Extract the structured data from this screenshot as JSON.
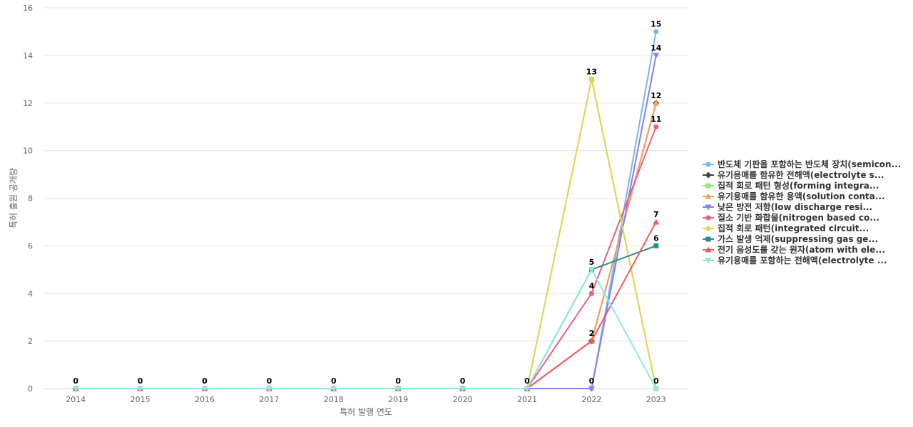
{
  "chart_data": {
    "type": "line",
    "title": "",
    "xlabel": "특허 발행 연도",
    "ylabel": "특허 출원 공개량",
    "x": [
      "2014",
      "2015",
      "2016",
      "2017",
      "2018",
      "2019",
      "2020",
      "2021",
      "2022",
      "2023"
    ],
    "ylim": [
      0,
      16
    ],
    "yticks": [
      0,
      2,
      4,
      6,
      8,
      10,
      12,
      14,
      16
    ],
    "grid": true,
    "legend_position": "right",
    "series": [
      {
        "name": "반도체 기판을 포함하는 반도체 장치(semicon...",
        "color": "#7cb5ec",
        "marker": "circle",
        "values": [
          0,
          0,
          0,
          0,
          0,
          0,
          0,
          0,
          0,
          15
        ],
        "labels": [
          null,
          null,
          null,
          null,
          null,
          null,
          null,
          null,
          null,
          "15"
        ]
      },
      {
        "name": "유기용매를 함유한 전해액(electrolyte s...",
        "color": "#434348",
        "marker": "diamond",
        "values": [
          0,
          0,
          0,
          0,
          0,
          0,
          0,
          0,
          2,
          12
        ],
        "labels": [
          null,
          null,
          null,
          null,
          null,
          null,
          null,
          null,
          null,
          null
        ]
      },
      {
        "name": "집적 회로 패턴 형성(forming integra...",
        "color": "#90ed7d",
        "marker": "square",
        "values": [
          0,
          0,
          0,
          0,
          0,
          0,
          0,
          0,
          13,
          0
        ],
        "labels": [
          null,
          null,
          null,
          null,
          null,
          null,
          null,
          null,
          null,
          null
        ]
      },
      {
        "name": "유기용매를 함유한 용액(solution conta...",
        "color": "#f7a35c",
        "marker": "triangle",
        "values": [
          0,
          0,
          0,
          0,
          0,
          0,
          0,
          0,
          2,
          12
        ],
        "labels": [
          null,
          null,
          null,
          null,
          null,
          null,
          null,
          null,
          null,
          "12"
        ]
      },
      {
        "name": "낮은 방전 저항(low discharge resi...",
        "color": "#8085e9",
        "marker": "triangle-down",
        "values": [
          0,
          0,
          0,
          0,
          0,
          0,
          0,
          0,
          0,
          14
        ],
        "labels": [
          null,
          null,
          null,
          null,
          null,
          null,
          null,
          null,
          "0",
          "14"
        ]
      },
      {
        "name": "질소 기반 화합물(nitrogen based co...",
        "color": "#f15c80",
        "marker": "circle",
        "values": [
          0,
          0,
          0,
          0,
          0,
          0,
          0,
          0,
          4,
          11
        ],
        "labels": [
          null,
          null,
          null,
          null,
          null,
          null,
          null,
          null,
          "4",
          "11"
        ]
      },
      {
        "name": "집적 회로 패턴(integrated circuit...",
        "color": "#e4d354",
        "marker": "diamond",
        "values": [
          0,
          0,
          0,
          0,
          0,
          0,
          0,
          0,
          13,
          0
        ],
        "labels": [
          null,
          null,
          null,
          null,
          null,
          null,
          null,
          null,
          "13",
          null
        ]
      },
      {
        "name": "가스 발생 억제(suppressing gas ge...",
        "color": "#2b908f",
        "marker": "square",
        "values": [
          0,
          0,
          0,
          0,
          0,
          0,
          0,
          0,
          5,
          6
        ],
        "labels": [
          null,
          null,
          null,
          null,
          null,
          null,
          null,
          null,
          null,
          "6"
        ]
      },
      {
        "name": "전기 음성도를 갖는 원자(atom with ele...",
        "color": "#f45b5b",
        "marker": "triangle",
        "values": [
          0,
          0,
          0,
          0,
          0,
          0,
          0,
          0,
          2,
          7
        ],
        "labels": [
          null,
          null,
          null,
          null,
          null,
          null,
          null,
          null,
          "2",
          "7"
        ]
      },
      {
        "name": "유기용매를 포함하는 전해액(electrolyte ...",
        "color": "#91e8e1",
        "marker": "triangle-down",
        "values": [
          0,
          0,
          0,
          0,
          0,
          0,
          0,
          0,
          5,
          0
        ],
        "labels": [
          "0",
          "0",
          "0",
          "0",
          "0",
          "0",
          "0",
          "0",
          "5",
          "0"
        ]
      }
    ]
  }
}
